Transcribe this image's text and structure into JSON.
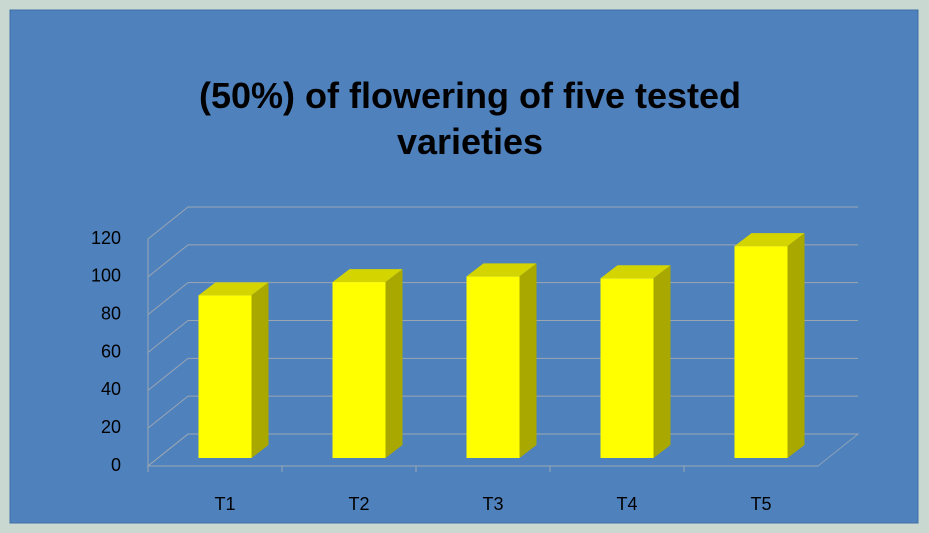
{
  "chart_data": {
    "type": "bar3d",
    "title": "(50%) of flowering of five tested varieties",
    "categories": [
      "T1",
      "T2",
      "T3",
      "T4",
      "T5"
    ],
    "values": [
      86,
      93,
      96,
      95,
      112
    ],
    "color": "#ffff00",
    "ylim": [
      0,
      120
    ],
    "yticks": [
      0,
      20,
      40,
      60,
      80,
      100,
      120
    ],
    "grid": true
  }
}
